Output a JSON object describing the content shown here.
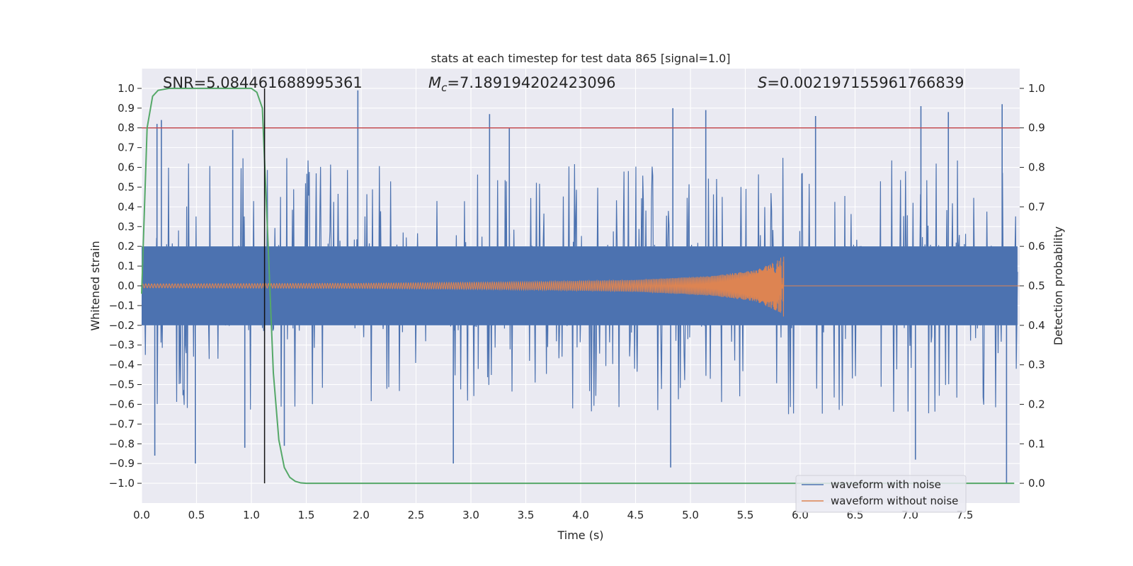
{
  "chart_data": {
    "type": "line",
    "title": "stats at each timestep for test data 865 [signal=1.0]",
    "xlabel": "Time (s)",
    "ylabel_left": "Whitened strain",
    "ylabel_right": "Detection probability",
    "xlim": [
      0.0,
      8.0
    ],
    "ylim_left": [
      -1.1,
      1.1
    ],
    "ylim_right": [
      -0.05,
      1.05
    ],
    "grid": true,
    "xticks": [
      0.0,
      0.5,
      1.0,
      1.5,
      2.0,
      2.5,
      3.0,
      3.5,
      4.0,
      4.5,
      5.0,
      5.5,
      6.0,
      6.5,
      7.0,
      7.5
    ],
    "xtick_labels": [
      "0.0",
      "0.5",
      "1.0",
      "1.5",
      "2.0",
      "2.5",
      "3.0",
      "3.5",
      "4.0",
      "4.5",
      "5.0",
      "5.5",
      "6.0",
      "6.5",
      "7.0",
      "7.5"
    ],
    "yticks_left": [
      1.0,
      0.9,
      0.8,
      0.7,
      0.6,
      0.5,
      0.4,
      0.3,
      0.2,
      0.1,
      0.0,
      -0.1,
      -0.2,
      -0.3,
      -0.4,
      -0.5,
      -0.6,
      -0.7,
      -0.8,
      -0.9,
      -1.0
    ],
    "ytick_labels_left": [
      "1.0",
      "0.9",
      "0.8",
      "0.7",
      "0.6",
      "0.5",
      "0.4",
      "0.3",
      "0.2",
      "0.1",
      "0.0",
      "−0.1",
      "−0.2",
      "−0.3",
      "−0.4",
      "−0.5",
      "−0.6",
      "−0.7",
      "−0.8",
      "−0.9",
      "−1.0"
    ],
    "yticks_right": [
      1.0,
      0.9,
      0.8,
      0.7,
      0.6,
      0.5,
      0.4,
      0.3,
      0.2,
      0.1,
      0.0
    ],
    "ytick_labels_right": [
      "1.0",
      "0.9",
      "0.8",
      "0.7",
      "0.6",
      "0.5",
      "0.4",
      "0.3",
      "0.2",
      "0.1",
      "0.0"
    ],
    "annotations": {
      "snr": {
        "label": "SNR=",
        "value": "5.084461688995361"
      },
      "mc": {
        "symbol": "M",
        "subscript": "c",
        "label": "=",
        "value": "7.189194202423096"
      },
      "s": {
        "symbol": "S",
        "label": "=",
        "value": "0.002197155961766839"
      }
    },
    "threshold_right": 0.9,
    "detection_time": 1.12,
    "noise_series": {
      "name": "waveform with noise",
      "color": "#4c72b0",
      "x_range": [
        0.0,
        7.98
      ],
      "typical_band": [
        -0.2,
        0.2
      ],
      "spikes": [
        {
          "x": 0.18,
          "y": 0.84
        },
        {
          "x": 0.14,
          "y": 0.82
        },
        {
          "x": 0.83,
          "y": 0.79
        },
        {
          "x": 1.97,
          "y": 0.99
        },
        {
          "x": 3.17,
          "y": 0.87
        },
        {
          "x": 3.35,
          "y": 0.8
        },
        {
          "x": 4.84,
          "y": 0.9
        },
        {
          "x": 5.14,
          "y": 0.89
        },
        {
          "x": 6.14,
          "y": 0.86
        },
        {
          "x": 7.1,
          "y": 0.91
        },
        {
          "x": 7.35,
          "y": 0.88
        },
        {
          "x": 7.84,
          "y": 0.92
        },
        {
          "x": 0.12,
          "y": -0.86
        },
        {
          "x": 0.49,
          "y": -0.9
        },
        {
          "x": 0.94,
          "y": -0.82
        },
        {
          "x": 1.3,
          "y": -0.81
        },
        {
          "x": 2.84,
          "y": -0.9
        },
        {
          "x": 4.82,
          "y": -0.92
        },
        {
          "x": 7.05,
          "y": -0.88
        },
        {
          "x": 7.88,
          "y": -1.0
        }
      ]
    },
    "clean_series": {
      "name": "waveform without noise",
      "color": "#dd8452",
      "x_range": [
        0.0,
        5.85
      ],
      "envelope": [
        {
          "x": 0.0,
          "amp": 0.01
        },
        {
          "x": 2.0,
          "amp": 0.013
        },
        {
          "x": 3.5,
          "amp": 0.02
        },
        {
          "x": 4.5,
          "amp": 0.03
        },
        {
          "x": 5.2,
          "amp": 0.05
        },
        {
          "x": 5.6,
          "amp": 0.08
        },
        {
          "x": 5.8,
          "amp": 0.13
        },
        {
          "x": 5.85,
          "amp": 0.16
        }
      ]
    },
    "probability_series": {
      "name": "Detection probability",
      "color": "#55a868",
      "x": [
        0.0,
        0.05,
        0.1,
        0.15,
        0.25,
        0.5,
        0.8,
        1.0,
        1.05,
        1.1,
        1.15,
        1.2,
        1.25,
        1.3,
        1.35,
        1.4,
        1.45,
        1.5,
        2.0,
        3.0,
        4.0,
        5.0,
        6.0,
        7.0,
        7.95
      ],
      "y": [
        0.48,
        0.9,
        0.98,
        0.995,
        1.0,
        1.0,
        1.0,
        1.0,
        0.99,
        0.95,
        0.62,
        0.28,
        0.11,
        0.04,
        0.015,
        0.005,
        0.001,
        0.0,
        0.0,
        0.0,
        0.0,
        0.0,
        0.0,
        0.0,
        0.0
      ]
    },
    "legend": {
      "placement": "bottom-right",
      "entries": [
        {
          "label": "waveform with noise",
          "color": "#4c72b0"
        },
        {
          "label": "waveform without noise",
          "color": "#dd8452"
        }
      ]
    }
  }
}
